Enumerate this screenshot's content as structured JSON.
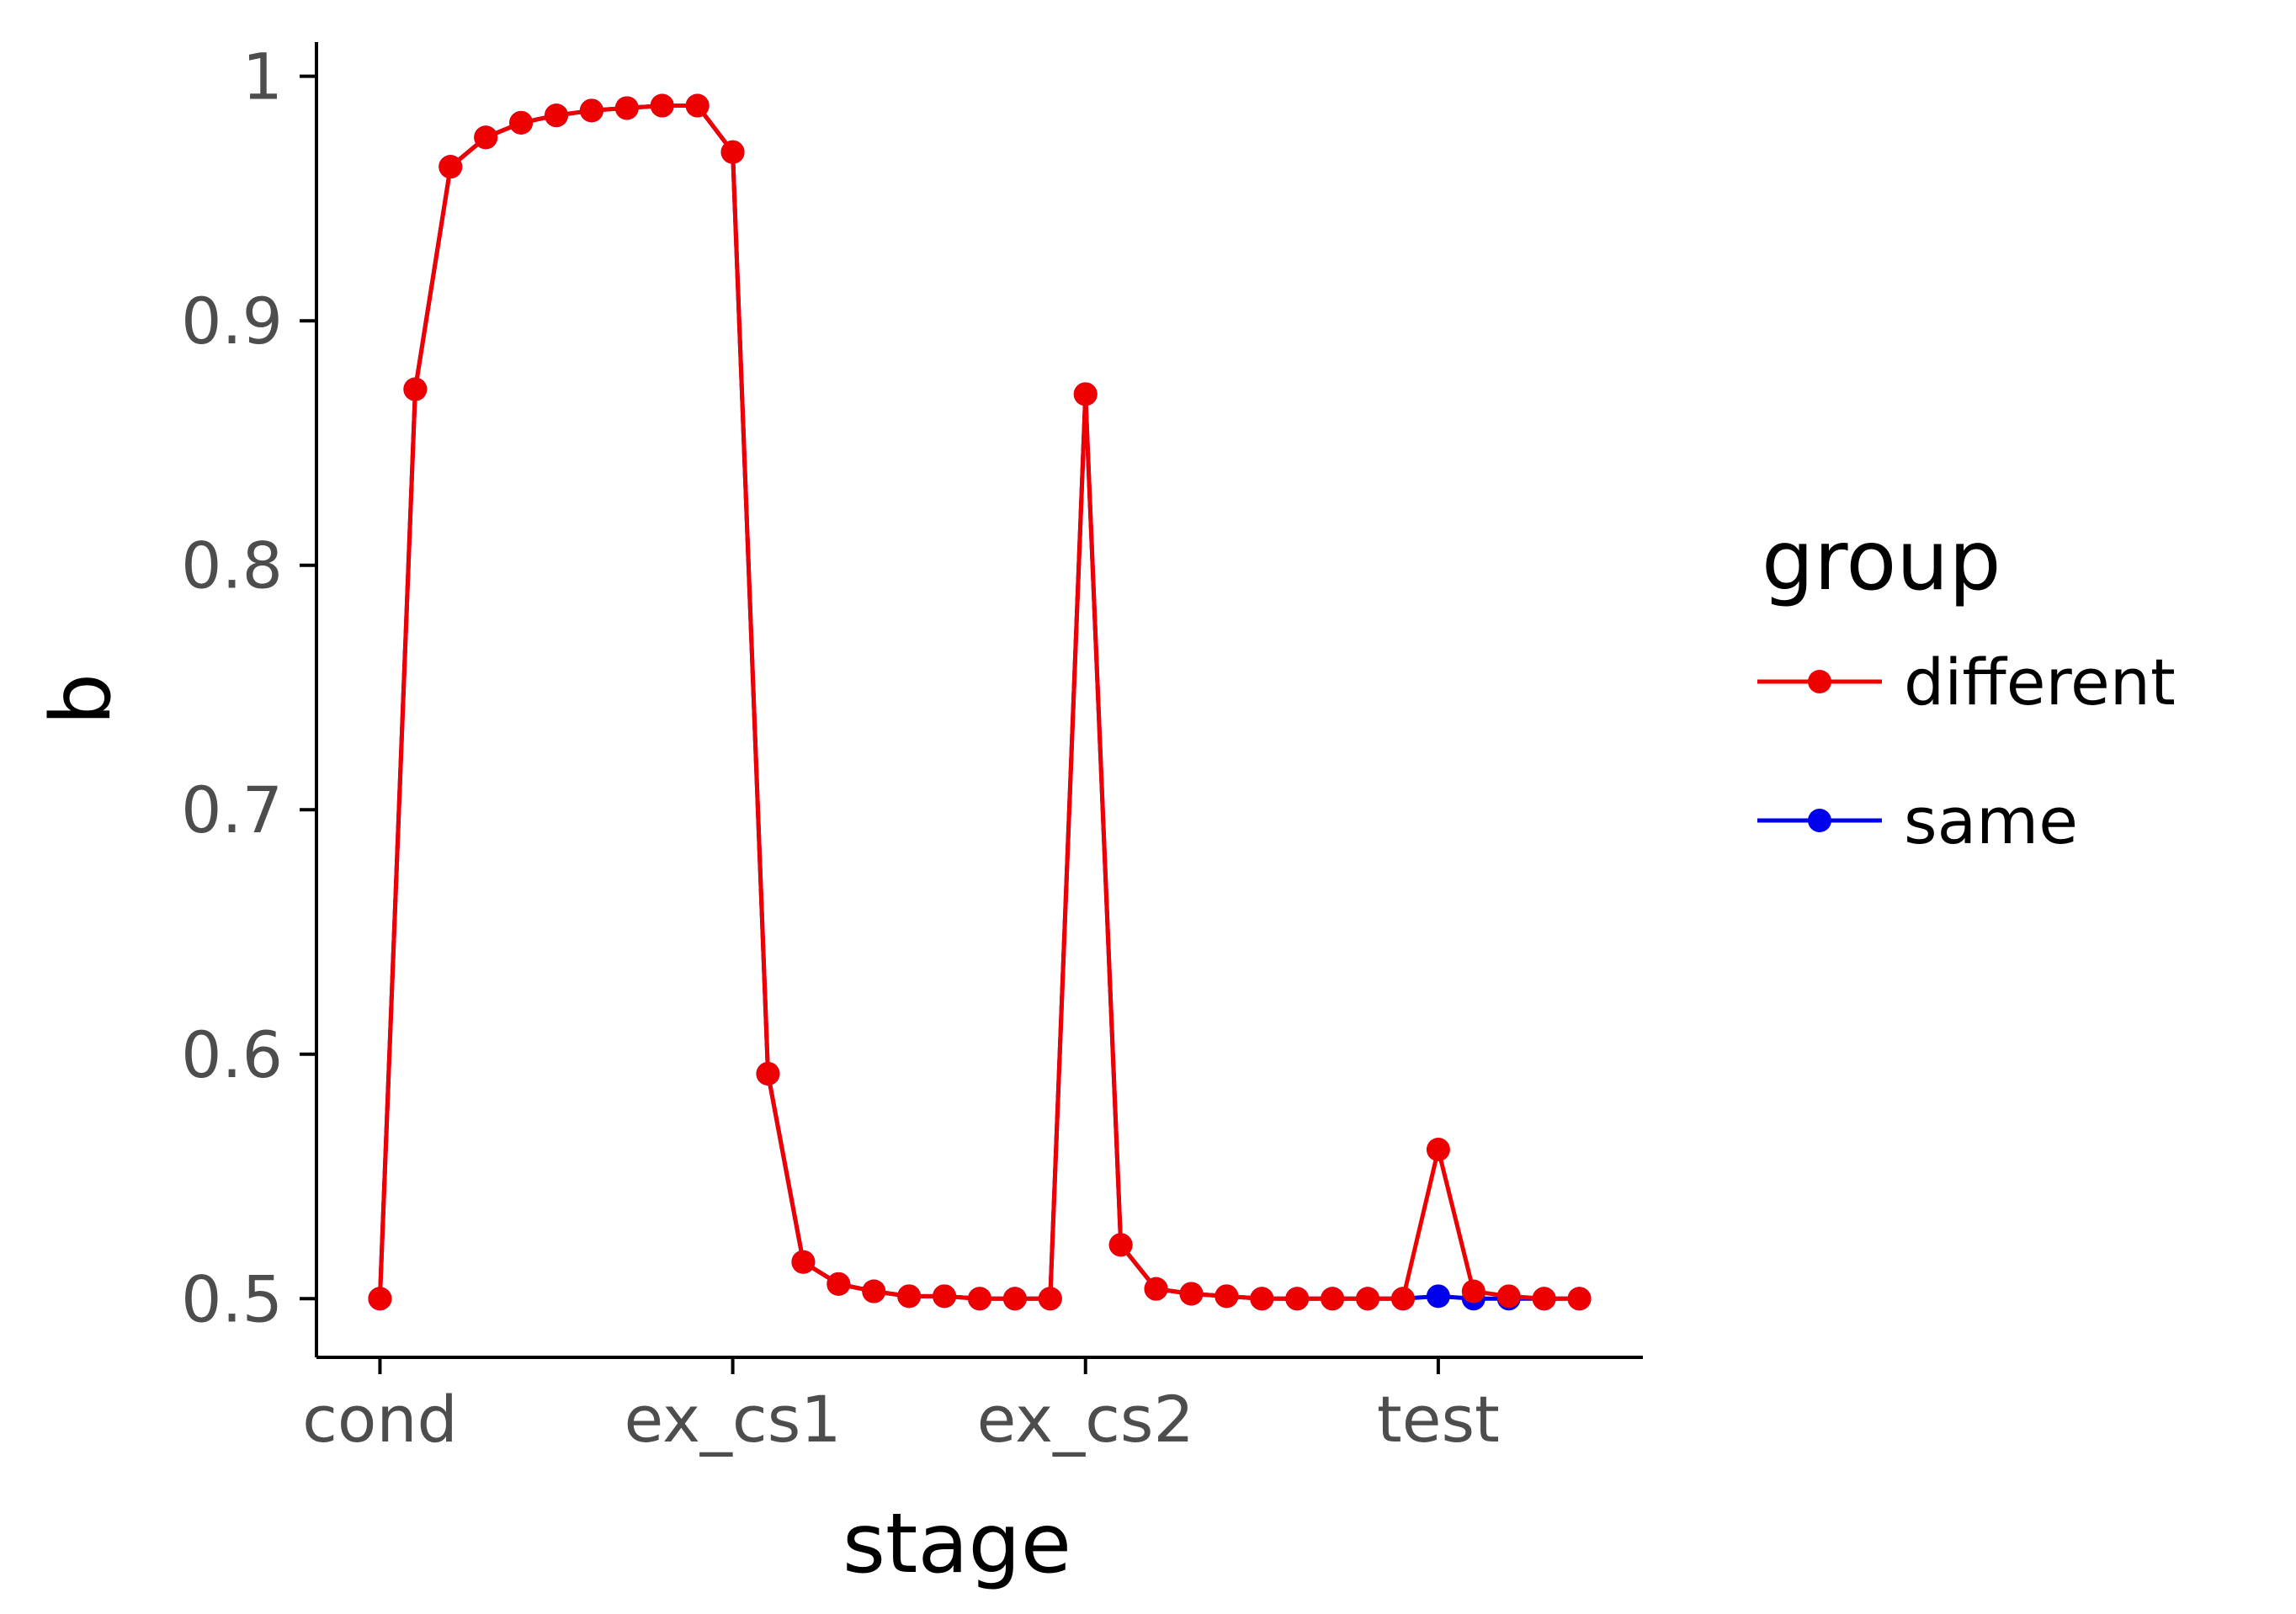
{
  "chart_data": {
    "type": "line",
    "xlabel": "stage",
    "ylabel": "b",
    "x_tick_labels": [
      "cond",
      "ex_cs1",
      "ex_cs2",
      "test"
    ],
    "x_tick_positions": [
      0,
      10,
      20,
      30
    ],
    "x": [
      0,
      1,
      2,
      3,
      4,
      5,
      6,
      7,
      8,
      9,
      10,
      11,
      12,
      13,
      14,
      15,
      16,
      17,
      18,
      19,
      20,
      21,
      22,
      23,
      24,
      25,
      26,
      27,
      28,
      29,
      30,
      31,
      32,
      33,
      34
    ],
    "xlim": [
      -1.8,
      35.8
    ],
    "ylim": [
      0.476,
      1.014
    ],
    "y_ticks": [
      0.5,
      0.6,
      0.7,
      0.8,
      0.9,
      1.0
    ],
    "y_tick_labels": [
      "0.5",
      "0.6",
      "0.7",
      "0.8",
      "0.9",
      "1"
    ],
    "grid": false,
    "legend": {
      "title": "group",
      "placement": "right"
    },
    "series": [
      {
        "name": "same",
        "color": "#0000ee",
        "values": [
          0.5,
          0.872,
          0.963,
          0.975,
          0.981,
          0.984,
          0.986,
          0.987,
          0.988,
          0.988,
          0.969,
          0.592,
          0.515,
          0.506,
          0.503,
          0.501,
          0.501,
          0.5,
          0.5,
          0.5,
          0.87,
          0.522,
          0.504,
          0.502,
          0.501,
          0.5,
          0.5,
          0.5,
          0.5,
          0.5,
          0.501,
          0.5,
          0.5,
          0.5,
          0.5
        ]
      },
      {
        "name": "different",
        "color": "#ee0000",
        "values": [
          0.5,
          0.872,
          0.963,
          0.975,
          0.981,
          0.984,
          0.986,
          0.987,
          0.988,
          0.988,
          0.969,
          0.592,
          0.515,
          0.506,
          0.503,
          0.501,
          0.501,
          0.5,
          0.5,
          0.5,
          0.87,
          0.522,
          0.504,
          0.502,
          0.501,
          0.5,
          0.5,
          0.5,
          0.5,
          0.5,
          0.561,
          0.503,
          0.501,
          0.5,
          0.5
        ]
      }
    ]
  }
}
